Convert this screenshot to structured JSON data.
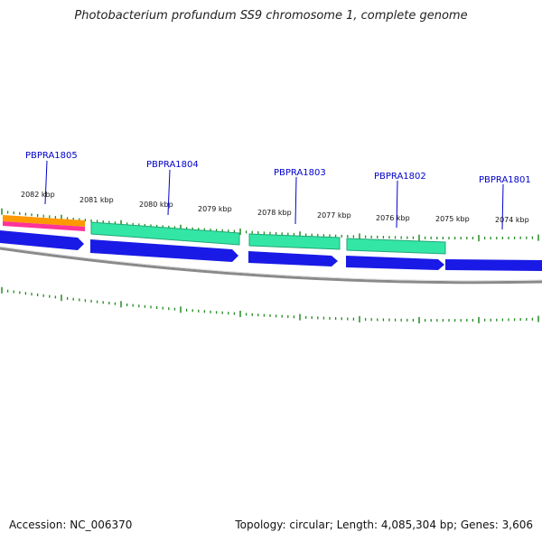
{
  "title": "Photobacterium profundum SS9 chromosome 1, complete genome",
  "footer": {
    "accession": "Accession: NC_006370",
    "stats": "Topology: circular; Length: 4,085,304 bp; Genes: 3,606"
  },
  "colors": {
    "backbone": "#8a8a8a",
    "cds": "#1a1ae6",
    "gene": "#33e6a6",
    "orange": "#ff9900",
    "pink": "#ff3399",
    "tick": "#228b22",
    "gene_label": "#0000cc"
  },
  "scale_labels": [
    "2082 kbp",
    "2081 kbp",
    "2080 kbp",
    "2079 kbp",
    "2078 kbp",
    "2077 kbp",
    "2076 kbp",
    "2075 kbp",
    "2074 kbp"
  ],
  "gene_labels": [
    "PBPRA1805",
    "PBPRA1804",
    "PBPRA1803",
    "PBPRA1802",
    "PBPRA1801"
  ]
}
